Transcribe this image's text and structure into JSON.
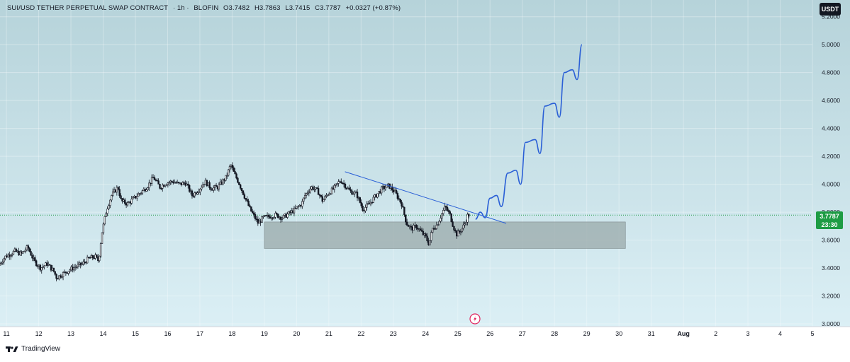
{
  "header": {
    "symbol": "SUI/USD TETHER PERPETUAL SWAP CONTRACT",
    "interval": "· 1h ·",
    "exchange": "BLOFIN",
    "open": "O3.7482",
    "high": "H3.7863",
    "low": "L3.7415",
    "close": "C3.7787",
    "change": "+0.0327 (+0.87%)"
  },
  "quote_currency": "USDT",
  "last_price": {
    "price": "3.7787",
    "countdown": "23:30"
  },
  "footer": {
    "brand": "TradingView"
  },
  "colors": {
    "background_top": "#b6d3da",
    "background_bottom": "#dbeff5",
    "candles": "#131722",
    "trendline": "#2a5fd6",
    "projection": "#2a5fd6",
    "zone_fill": "#9aa9aa",
    "last_price_line": "#1e9c44",
    "event_icon": "#e0245e"
  },
  "chart_data": {
    "type": "candlestick",
    "interval": "1h",
    "y_axis": {
      "ticks": [
        "5.2000",
        "5.0000",
        "4.8000",
        "4.6000",
        "4.4000",
        "4.2000",
        "4.0000",
        "3.8000",
        "3.6000",
        "3.4000",
        "3.2000",
        "3.0000"
      ],
      "tick_values": [
        5.2,
        5.0,
        4.8,
        4.6,
        4.4,
        4.2,
        4.0,
        3.8,
        3.6,
        3.4,
        3.2,
        3.0
      ],
      "range": [
        2.98,
        5.32
      ],
      "position": "right"
    },
    "x_axis": {
      "ticks": [
        "11",
        "12",
        "13",
        "14",
        "15",
        "16",
        "17",
        "18",
        "19",
        "20",
        "21",
        "22",
        "23",
        "24",
        "25",
        "26",
        "27",
        "28",
        "29",
        "30",
        "31",
        "Aug",
        "2",
        "3",
        "4",
        "5"
      ],
      "tick_days": [
        11,
        12,
        13,
        14,
        15,
        16,
        17,
        18,
        19,
        20,
        21,
        22,
        23,
        24,
        25,
        26,
        27,
        28,
        29,
        30,
        31,
        32,
        33,
        34,
        35,
        36
      ],
      "range_days": [
        10.8,
        36.0
      ]
    },
    "price_path": [
      [
        10.8,
        3.42
      ],
      [
        11.0,
        3.48
      ],
      [
        11.3,
        3.52
      ],
      [
        11.5,
        3.5
      ],
      [
        11.7,
        3.55
      ],
      [
        11.9,
        3.45
      ],
      [
        12.1,
        3.4
      ],
      [
        12.3,
        3.43
      ],
      [
        12.5,
        3.38
      ],
      [
        12.6,
        3.33
      ],
      [
        12.8,
        3.36
      ],
      [
        13.1,
        3.4
      ],
      [
        13.4,
        3.43
      ],
      [
        13.6,
        3.47
      ],
      [
        13.8,
        3.48
      ],
      [
        13.9,
        3.45
      ],
      [
        14.0,
        3.65
      ],
      [
        14.15,
        3.82
      ],
      [
        14.3,
        3.92
      ],
      [
        14.5,
        3.98
      ],
      [
        14.6,
        3.88
      ],
      [
        14.8,
        3.86
      ],
      [
        15.0,
        3.9
      ],
      [
        15.2,
        3.94
      ],
      [
        15.4,
        3.98
      ],
      [
        15.6,
        4.05
      ],
      [
        15.8,
        3.98
      ],
      [
        16.0,
        4.01
      ],
      [
        16.2,
        4.02
      ],
      [
        16.4,
        4.0
      ],
      [
        16.6,
        4.01
      ],
      [
        16.8,
        3.92
      ],
      [
        17.0,
        3.96
      ],
      [
        17.2,
        4.02
      ],
      [
        17.4,
        3.97
      ],
      [
        17.6,
        3.98
      ],
      [
        17.85,
        4.05
      ],
      [
        18.0,
        4.14
      ],
      [
        18.1,
        4.08
      ],
      [
        18.25,
        4.01
      ],
      [
        18.45,
        3.9
      ],
      [
        18.6,
        3.82
      ],
      [
        18.7,
        3.78
      ],
      [
        18.85,
        3.72
      ],
      [
        19.0,
        3.76
      ],
      [
        19.2,
        3.77
      ],
      [
        19.4,
        3.78
      ],
      [
        19.6,
        3.76
      ],
      [
        19.8,
        3.79
      ],
      [
        20.0,
        3.82
      ],
      [
        20.2,
        3.86
      ],
      [
        20.3,
        3.92
      ],
      [
        20.5,
        3.98
      ],
      [
        20.7,
        3.95
      ],
      [
        20.85,
        3.88
      ],
      [
        21.0,
        3.93
      ],
      [
        21.2,
        3.97
      ],
      [
        21.4,
        4.03
      ],
      [
        21.55,
        3.99
      ],
      [
        21.7,
        3.95
      ],
      [
        21.9,
        3.93
      ],
      [
        22.1,
        3.82
      ],
      [
        22.3,
        3.86
      ],
      [
        22.5,
        3.92
      ],
      [
        22.7,
        3.97
      ],
      [
        22.9,
        3.99
      ],
      [
        23.1,
        3.94
      ],
      [
        23.3,
        3.86
      ],
      [
        23.45,
        3.72
      ],
      [
        23.6,
        3.68
      ],
      [
        23.75,
        3.7
      ],
      [
        23.9,
        3.66
      ],
      [
        24.05,
        3.62
      ],
      [
        24.15,
        3.57
      ],
      [
        24.25,
        3.68
      ],
      [
        24.4,
        3.71
      ],
      [
        24.55,
        3.79
      ],
      [
        24.65,
        3.84
      ],
      [
        24.8,
        3.78
      ],
      [
        24.9,
        3.7
      ],
      [
        25.0,
        3.64
      ],
      [
        25.1,
        3.66
      ],
      [
        25.25,
        3.71
      ],
      [
        25.35,
        3.78
      ]
    ],
    "trendline": {
      "from": [
        21.5,
        4.09
      ],
      "to": [
        26.5,
        3.72
      ]
    },
    "support_zone": {
      "x_range": [
        19.0,
        30.2
      ],
      "y_range": [
        3.54,
        3.73
      ]
    },
    "projection_path": [
      [
        25.55,
        3.75
      ],
      [
        25.7,
        3.8
      ],
      [
        25.85,
        3.76
      ],
      [
        26.0,
        3.9
      ],
      [
        26.2,
        3.92
      ],
      [
        26.35,
        3.84
      ],
      [
        26.55,
        4.08
      ],
      [
        26.8,
        4.1
      ],
      [
        26.95,
        4.0
      ],
      [
        27.1,
        4.3
      ],
      [
        27.4,
        4.32
      ],
      [
        27.55,
        4.22
      ],
      [
        27.7,
        4.56
      ],
      [
        28.0,
        4.58
      ],
      [
        28.15,
        4.48
      ],
      [
        28.3,
        4.8
      ],
      [
        28.55,
        4.82
      ],
      [
        28.7,
        4.75
      ],
      [
        28.85,
        5.0
      ]
    ],
    "last_price_value": 3.7787
  }
}
